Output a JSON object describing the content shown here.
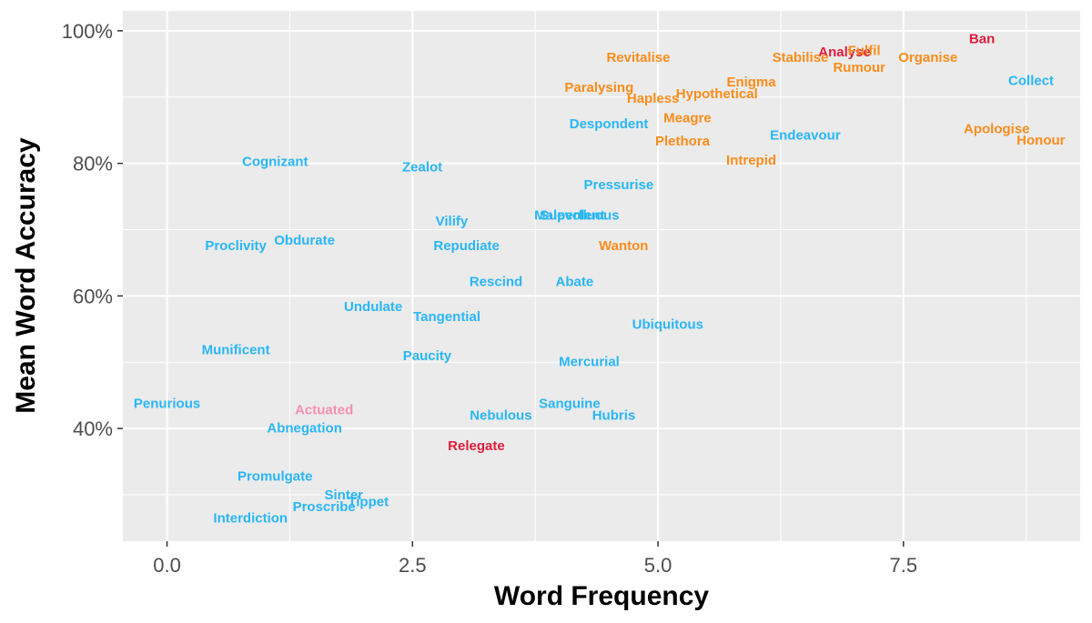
{
  "chart_data": {
    "type": "scatter",
    "title": "",
    "xlabel": "Word Frequency",
    "ylabel": "Mean Word Accuracy",
    "xlim": [
      -0.45,
      9.3
    ],
    "ylim": [
      23,
      103
    ],
    "x_ticks": [
      0,
      2.5,
      5,
      7.5
    ],
    "x_tick_labels": [
      "0.0",
      "2.5",
      "5.0",
      "7.5"
    ],
    "x_minor": [
      1.25,
      3.75,
      6.25,
      8.75
    ],
    "y_ticks": [
      40,
      60,
      80,
      100
    ],
    "y_tick_labels": [
      "40%",
      "60%",
      "80%",
      "100%"
    ],
    "y_minor": [
      30,
      50,
      70,
      90
    ],
    "grid": true,
    "legend": "none",
    "colors": {
      "blue": "#29b6f6",
      "orange": "#fb8c1a",
      "red": "#dc1d3c",
      "pink": "#f48fb1",
      "panel": "#ebebeb",
      "grid": "#ffffff"
    },
    "points": [
      {
        "label": "Ban",
        "x": 8.3,
        "y": 98.8,
        "color": "red"
      },
      {
        "label": "Analyse",
        "x": 6.9,
        "y": 96.8,
        "color": "red"
      },
      {
        "label": "Fulfil",
        "x": 7.1,
        "y": 97.0,
        "color": "orange"
      },
      {
        "label": "Organise",
        "x": 7.75,
        "y": 96.0,
        "color": "orange"
      },
      {
        "label": "Stabilise",
        "x": 6.45,
        "y": 96.0,
        "color": "orange"
      },
      {
        "label": "Rumour",
        "x": 7.05,
        "y": 94.5,
        "color": "orange"
      },
      {
        "label": "Revitalise",
        "x": 4.8,
        "y": 96.0,
        "color": "orange"
      },
      {
        "label": "Collect",
        "x": 8.8,
        "y": 92.5,
        "color": "blue"
      },
      {
        "label": "Enigma",
        "x": 5.95,
        "y": 92.3,
        "color": "orange"
      },
      {
        "label": "Paralysing",
        "x": 4.4,
        "y": 91.5,
        "color": "orange"
      },
      {
        "label": "Hypothetical",
        "x": 5.6,
        "y": 90.5,
        "color": "orange"
      },
      {
        "label": "Hapless",
        "x": 4.95,
        "y": 89.8,
        "color": "orange"
      },
      {
        "label": "Meagre",
        "x": 5.3,
        "y": 86.9,
        "color": "orange"
      },
      {
        "label": "Despondent",
        "x": 4.5,
        "y": 86.0,
        "color": "blue"
      },
      {
        "label": "Apologise",
        "x": 8.45,
        "y": 85.2,
        "color": "orange"
      },
      {
        "label": "Endeavour",
        "x": 6.5,
        "y": 84.3,
        "color": "blue"
      },
      {
        "label": "Honour",
        "x": 8.9,
        "y": 83.5,
        "color": "orange"
      },
      {
        "label": "Plethora",
        "x": 5.25,
        "y": 83.4,
        "color": "orange"
      },
      {
        "label": "Intrepid",
        "x": 5.95,
        "y": 80.5,
        "color": "orange"
      },
      {
        "label": "Cognizant",
        "x": 1.1,
        "y": 80.3,
        "color": "blue"
      },
      {
        "label": "Zealot",
        "x": 2.6,
        "y": 79.5,
        "color": "blue"
      },
      {
        "label": "Pressurise",
        "x": 4.6,
        "y": 76.8,
        "color": "blue"
      },
      {
        "label": "Malevolent",
        "x": 4.1,
        "y": 72.2,
        "color": "blue"
      },
      {
        "label": "Superfluous",
        "x": 4.2,
        "y": 72.2,
        "color": "blue"
      },
      {
        "label": "Vilify",
        "x": 2.9,
        "y": 71.3,
        "color": "blue"
      },
      {
        "label": "Proclivity",
        "x": 0.7,
        "y": 67.6,
        "color": "blue"
      },
      {
        "label": "Obdurate",
        "x": 1.4,
        "y": 68.4,
        "color": "blue"
      },
      {
        "label": "Repudiate",
        "x": 3.05,
        "y": 67.6,
        "color": "blue"
      },
      {
        "label": "Wanton",
        "x": 4.65,
        "y": 67.6,
        "color": "orange"
      },
      {
        "label": "Rescind",
        "x": 3.35,
        "y": 62.2,
        "color": "blue"
      },
      {
        "label": "Abate",
        "x": 4.15,
        "y": 62.2,
        "color": "blue"
      },
      {
        "label": "Undulate",
        "x": 2.1,
        "y": 58.4,
        "color": "blue"
      },
      {
        "label": "Tangential",
        "x": 2.85,
        "y": 56.9,
        "color": "blue"
      },
      {
        "label": "Ubiquitous",
        "x": 5.1,
        "y": 55.7,
        "color": "blue"
      },
      {
        "label": "Munificent",
        "x": 0.7,
        "y": 51.9,
        "color": "blue"
      },
      {
        "label": "Paucity",
        "x": 2.65,
        "y": 51.0,
        "color": "blue"
      },
      {
        "label": "Mercurial",
        "x": 4.3,
        "y": 50.1,
        "color": "blue"
      },
      {
        "label": "Penurious",
        "x": 0.0,
        "y": 43.8,
        "color": "blue"
      },
      {
        "label": "Sanguine",
        "x": 4.1,
        "y": 43.8,
        "color": "blue"
      },
      {
        "label": "Actuated",
        "x": 1.6,
        "y": 42.8,
        "color": "pink"
      },
      {
        "label": "Nebulous",
        "x": 3.4,
        "y": 42.0,
        "color": "blue"
      },
      {
        "label": "Hubris",
        "x": 4.55,
        "y": 42.0,
        "color": "blue"
      },
      {
        "label": "Abnegation",
        "x": 1.4,
        "y": 40.1,
        "color": "blue"
      },
      {
        "label": "Relegate",
        "x": 3.15,
        "y": 37.4,
        "color": "red"
      },
      {
        "label": "Promulgate",
        "x": 1.1,
        "y": 32.8,
        "color": "blue"
      },
      {
        "label": "Sinter",
        "x": 1.8,
        "y": 30.0,
        "color": "blue"
      },
      {
        "label": "Tippet",
        "x": 2.05,
        "y": 29.0,
        "color": "blue"
      },
      {
        "label": "Proscribe",
        "x": 1.6,
        "y": 28.2,
        "color": "blue"
      },
      {
        "label": "Interdiction",
        "x": 0.85,
        "y": 26.5,
        "color": "blue"
      }
    ]
  }
}
